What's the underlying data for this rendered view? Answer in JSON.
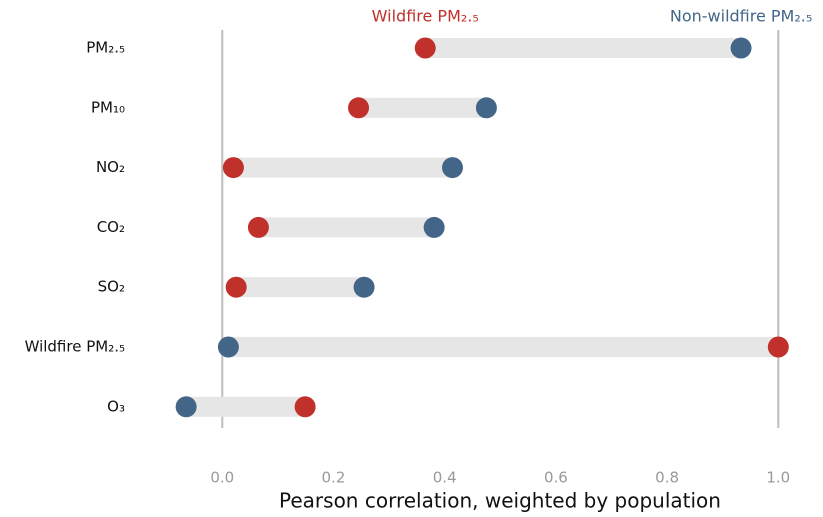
{
  "chart_data": {
    "type": "dumbbell",
    "x_label": "Pearson correlation, weighted by population",
    "categories": [
      "PM₂.₅",
      "PM₁₀",
      "NO₂",
      "CO₂",
      "SO₂",
      "Wildfire PM₂.₅",
      "O₃"
    ],
    "series": [
      {
        "name": "Wildfire PM₂.₅",
        "color": "#c0312b",
        "values": [
          0.365,
          0.245,
          0.02,
          0.065,
          0.025,
          1.0,
          0.149
        ]
      },
      {
        "name": "Non-wildfire PM₂.₅",
        "color": "#436688",
        "values": [
          0.933,
          0.475,
          0.414,
          0.381,
          0.255,
          0.011,
          -0.065
        ]
      }
    ],
    "xlim": [
      -0.13,
      1.03
    ],
    "xticks": [
      {
        "value": 0,
        "label": "0.0"
      },
      0.2,
      0.4,
      0.6,
      0.8,
      {
        "value": 1,
        "label": "1.0"
      }
    ]
  }
}
